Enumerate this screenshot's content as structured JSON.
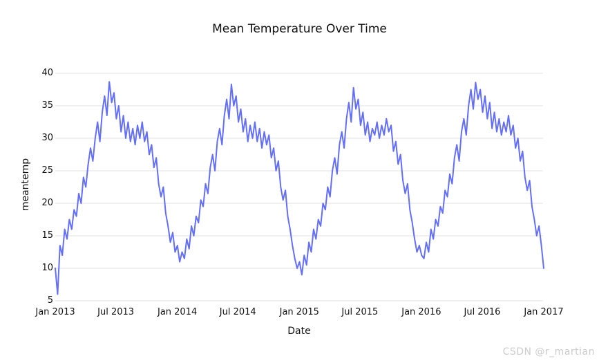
{
  "watermark": "CSDN @r_martian",
  "chart_data": {
    "type": "line",
    "title": "Mean Temperature Over Time",
    "xlabel": "Date",
    "ylabel": "meantemp",
    "series_name": "meantemp",
    "line_color": "#636efa",
    "grid_color": "#e2e2e2",
    "text_color": "#111111",
    "legend": "none",
    "grid": "horizontal-only",
    "ylim": [
      4.5,
      40.6
    ],
    "yticks": [
      5,
      10,
      15,
      20,
      25,
      30,
      35,
      40
    ],
    "xticks": [
      {
        "label": "Jan 2013",
        "day": 0
      },
      {
        "label": "Jul 2013",
        "day": 181
      },
      {
        "label": "Jan 2014",
        "day": 365
      },
      {
        "label": "Jul 2014",
        "day": 546
      },
      {
        "label": "Jan 2015",
        "day": 730
      },
      {
        "label": "Jul 2015",
        "day": 911
      },
      {
        "label": "Jan 2016",
        "day": 1095
      },
      {
        "label": "Jul 2016",
        "day": 1277
      },
      {
        "label": "Jan 2017",
        "day": 1461
      }
    ],
    "x_total_days": 1461,
    "x_range_labels": [
      "Jan 2013",
      "Jan 2017"
    ],
    "sampling": "weekly (values estimated from plot of daily mean temperature)",
    "values": [
      10,
      6,
      13.5,
      12,
      16,
      14.5,
      17.5,
      16,
      19,
      18,
      21.5,
      20,
      24,
      22.5,
      26,
      28.5,
      26.5,
      30,
      32.5,
      29.5,
      34,
      36.5,
      33.5,
      38.7,
      35.5,
      37,
      33,
      35,
      31,
      33.5,
      30,
      32.5,
      29.5,
      31.5,
      29,
      32,
      30,
      32.5,
      29.5,
      31,
      27.5,
      29,
      25.5,
      27,
      23,
      21,
      22.5,
      18.5,
      16.5,
      14,
      15.5,
      12.5,
      13.5,
      11,
      12.5,
      11.5,
      14.5,
      13,
      16.5,
      15,
      18,
      17,
      20.5,
      19.5,
      23,
      21.5,
      25.5,
      27.5,
      25,
      29.5,
      31.5,
      29,
      33.5,
      36,
      33,
      38.3,
      35,
      36.5,
      32.5,
      34.5,
      31,
      33,
      29.5,
      32,
      30,
      32.5,
      29.5,
      31.5,
      28.5,
      31,
      29,
      30.5,
      27,
      28.5,
      25,
      26.5,
      22.5,
      20.5,
      22,
      18,
      16,
      13.5,
      11.5,
      10,
      11,
      9,
      12,
      10.5,
      14,
      12.5,
      16,
      14.5,
      17.5,
      16.5,
      20,
      19,
      22.5,
      21,
      25,
      27,
      24.5,
      29,
      31,
      28.5,
      33,
      35.5,
      32.5,
      37.8,
      34.5,
      36,
      32,
      34,
      30.5,
      32.5,
      29.5,
      31.5,
      30.5,
      32.5,
      30,
      32,
      30.5,
      33,
      31,
      32,
      28,
      29.5,
      26,
      27.5,
      23.5,
      21.5,
      23,
      19,
      17,
      14.5,
      12.5,
      13.5,
      12,
      11.5,
      14,
      12.5,
      16,
      14.5,
      17.5,
      16.5,
      19.5,
      18.5,
      22,
      21,
      24.5,
      23,
      27,
      29,
      26.5,
      31,
      33,
      30.5,
      35,
      37.5,
      34.5,
      38.6,
      36,
      37.5,
      34,
      36.5,
      33,
      35.5,
      31.5,
      34,
      31,
      33,
      30.5,
      32.5,
      31,
      33.5,
      30.5,
      32,
      28.5,
      30,
      26.5,
      28,
      24,
      22,
      23.5,
      19.5,
      17.5,
      15,
      16.5,
      13.5,
      10
    ]
  }
}
